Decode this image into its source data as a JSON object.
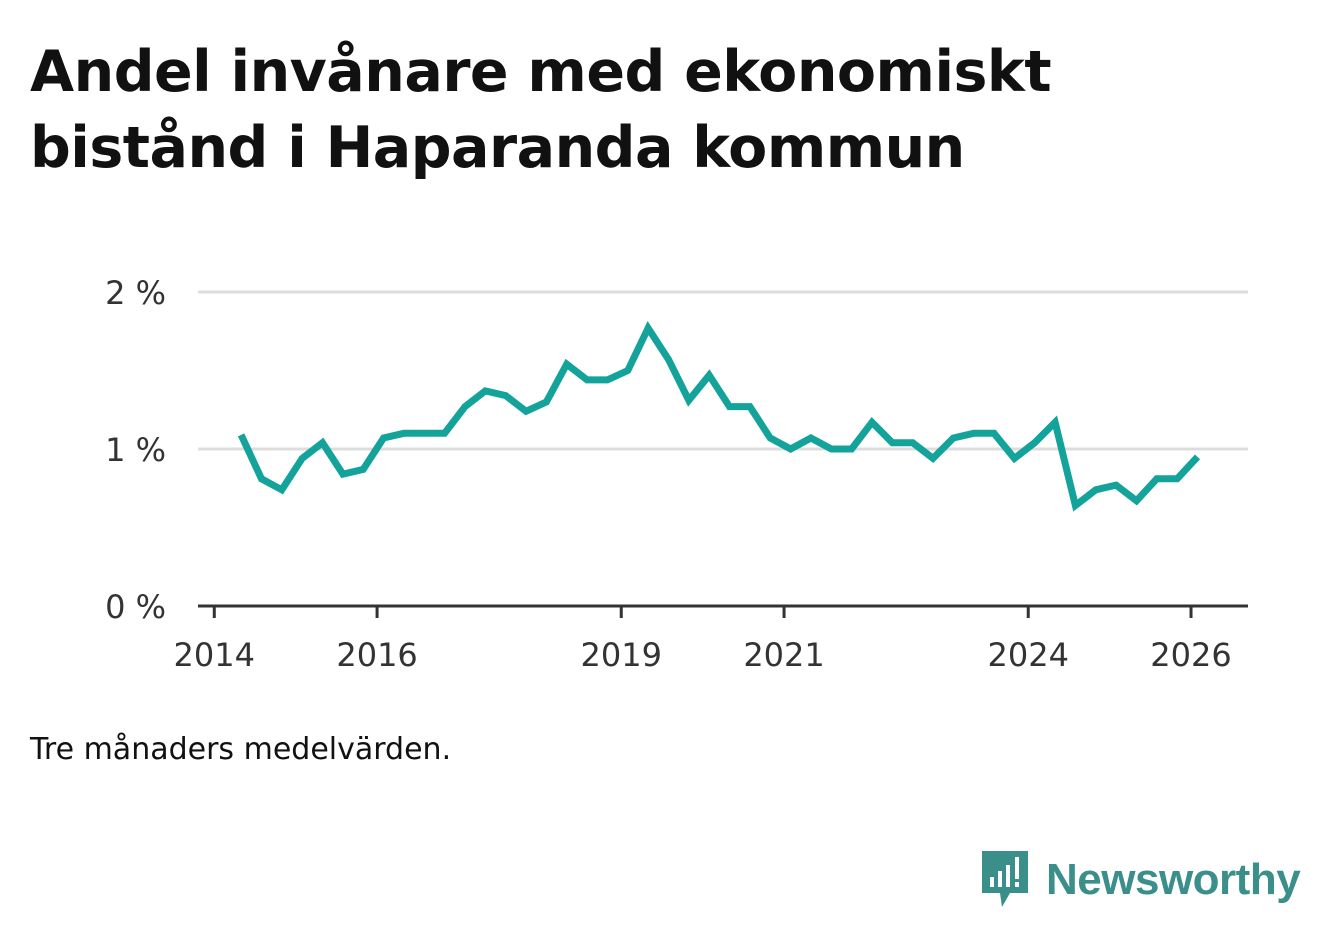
{
  "title_lines": [
    "Andel invånare med ekonomiskt",
    "bistånd i Haparanda kommun"
  ],
  "footnote": "Tre månaders medelvärden.",
  "brand": {
    "name": "Newsworthy",
    "color": "#3a8f8a",
    "icon": "newsworthy-logo-icon"
  },
  "colors": {
    "line": "#13a39a",
    "grid": "#dddddd",
    "axis": "#333333"
  },
  "chart_data": {
    "type": "line",
    "title": "Andel invånare med ekonomiskt bistånd i Haparanda kommun",
    "xlabel": "",
    "ylabel": "",
    "xlim": [
      2013.8,
      2026.7
    ],
    "ylim": [
      0,
      2
    ],
    "y_ticks": [
      0,
      1,
      2
    ],
    "y_tick_labels": [
      "0 %",
      "1 %",
      "2 %"
    ],
    "x_ticks": [
      2014,
      2016,
      2019,
      2021,
      2024,
      2026
    ],
    "x_tick_labels": [
      "2014",
      "2016",
      "2019",
      "2021",
      "2024",
      "2026"
    ],
    "grid": true,
    "series": [
      {
        "name": "Andel invånare med ekonomiskt bistånd",
        "x": [
          2014.33,
          2014.58,
          2014.83,
          2015.08,
          2015.33,
          2015.58,
          2015.83,
          2016.08,
          2016.33,
          2016.58,
          2016.83,
          2017.08,
          2017.33,
          2017.58,
          2017.83,
          2018.08,
          2018.33,
          2018.58,
          2018.83,
          2019.08,
          2019.33,
          2019.58,
          2019.83,
          2020.08,
          2020.33,
          2020.58,
          2020.83,
          2021.08,
          2021.33,
          2021.58,
          2021.83,
          2022.08,
          2022.33,
          2022.58,
          2022.83,
          2023.08,
          2023.33,
          2023.58,
          2023.83,
          2024.08,
          2024.33,
          2024.58,
          2024.83,
          2025.08,
          2025.33,
          2025.58,
          2025.83,
          2026.08
        ],
        "values": [
          1.09,
          0.81,
          0.74,
          0.94,
          1.04,
          0.84,
          0.87,
          1.07,
          1.1,
          1.1,
          1.1,
          1.27,
          1.37,
          1.34,
          1.24,
          1.3,
          1.54,
          1.44,
          1.44,
          1.5,
          1.77,
          1.57,
          1.31,
          1.47,
          1.27,
          1.27,
          1.07,
          1.0,
          1.07,
          1.0,
          1.0,
          1.17,
          1.04,
          1.04,
          0.94,
          1.07,
          1.1,
          1.1,
          0.94,
          1.04,
          1.17,
          0.64,
          0.74,
          0.77,
          0.67,
          0.81,
          0.81,
          0.95
        ]
      }
    ]
  }
}
